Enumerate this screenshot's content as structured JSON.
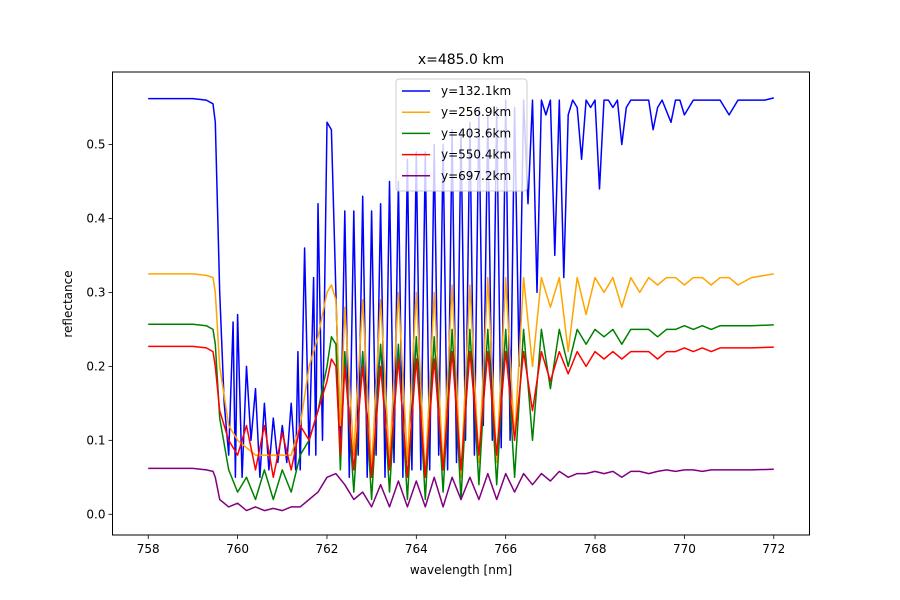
{
  "chart_data": {
    "type": "line",
    "title": "x=485.0 km",
    "xlabel": "wavelength [nm]",
    "ylabel": "reflectance",
    "xlim": [
      757.2,
      772.8
    ],
    "ylim": [
      -0.028,
      0.598
    ],
    "xticks": [
      758,
      760,
      762,
      764,
      766,
      768,
      770,
      772
    ],
    "yticks": [
      0.0,
      0.1,
      0.2,
      0.3,
      0.4,
      0.5
    ],
    "ytick_labels": [
      "0.0",
      "0.1",
      "0.2",
      "0.3",
      "0.4",
      "0.5"
    ],
    "grid": false,
    "legend_position": "top-center",
    "series": [
      {
        "name": "y=132.1km",
        "color": "#0000ff",
        "x": [
          758.0,
          759.0,
          759.3,
          759.45,
          759.5,
          759.6,
          759.7,
          759.8,
          759.9,
          759.95,
          760.0,
          760.1,
          760.2,
          760.3,
          760.4,
          760.5,
          760.6,
          760.7,
          760.8,
          760.9,
          761.0,
          761.1,
          761.2,
          761.3,
          761.35,
          761.4,
          761.5,
          761.6,
          761.7,
          761.75,
          761.8,
          761.9,
          762.0,
          762.1,
          762.2,
          762.3,
          762.4,
          762.5,
          762.6,
          762.7,
          762.8,
          762.9,
          763.0,
          763.1,
          763.2,
          763.3,
          763.4,
          763.5,
          763.6,
          763.7,
          763.8,
          763.9,
          764.0,
          764.1,
          764.2,
          764.3,
          764.4,
          764.5,
          764.6,
          764.7,
          764.8,
          764.9,
          765.0,
          765.1,
          765.2,
          765.3,
          765.4,
          765.5,
          765.6,
          765.7,
          765.8,
          765.9,
          766.0,
          766.1,
          766.2,
          766.3,
          766.4,
          766.5,
          766.6,
          766.7,
          766.8,
          766.9,
          767.0,
          767.1,
          767.2,
          767.3,
          767.4,
          767.5,
          767.6,
          767.7,
          767.8,
          767.9,
          768.0,
          768.1,
          768.2,
          768.3,
          768.4,
          768.5,
          768.6,
          768.7,
          768.8,
          769.0,
          769.2,
          769.3,
          769.4,
          769.5,
          769.7,
          769.8,
          769.9,
          770.0,
          770.2,
          770.5,
          770.7,
          770.8,
          771.0,
          771.2,
          771.5,
          771.8,
          772.0
        ],
        "y": [
          0.562,
          0.562,
          0.56,
          0.555,
          0.53,
          0.3,
          0.15,
          0.08,
          0.26,
          0.05,
          0.27,
          0.05,
          0.2,
          0.1,
          0.17,
          0.05,
          0.15,
          0.06,
          0.13,
          0.07,
          0.12,
          0.07,
          0.15,
          0.06,
          0.22,
          0.06,
          0.36,
          0.08,
          0.32,
          0.08,
          0.42,
          0.1,
          0.53,
          0.52,
          0.3,
          0.08,
          0.41,
          0.05,
          0.41,
          0.08,
          0.43,
          0.05,
          0.41,
          0.08,
          0.42,
          0.05,
          0.45,
          0.07,
          0.45,
          0.05,
          0.48,
          0.06,
          0.49,
          0.06,
          0.49,
          0.06,
          0.5,
          0.08,
          0.5,
          0.06,
          0.52,
          0.07,
          0.52,
          0.1,
          0.53,
          0.08,
          0.55,
          0.12,
          0.54,
          0.1,
          0.55,
          0.09,
          0.56,
          0.1,
          0.55,
          0.2,
          0.56,
          0.42,
          0.56,
          0.3,
          0.56,
          0.54,
          0.56,
          0.35,
          0.56,
          0.32,
          0.54,
          0.56,
          0.55,
          0.48,
          0.56,
          0.55,
          0.56,
          0.44,
          0.56,
          0.56,
          0.55,
          0.56,
          0.5,
          0.55,
          0.56,
          0.56,
          0.56,
          0.52,
          0.55,
          0.56,
          0.53,
          0.56,
          0.56,
          0.54,
          0.56,
          0.56,
          0.56,
          0.56,
          0.54,
          0.56,
          0.56,
          0.56,
          0.563
        ]
      },
      {
        "name": "y=256.9km",
        "color": "#ffa500",
        "x": [
          758.0,
          759.0,
          759.3,
          759.45,
          759.5,
          759.6,
          759.8,
          760.0,
          760.2,
          760.4,
          760.6,
          760.8,
          761.0,
          761.2,
          761.4,
          761.6,
          761.8,
          762.0,
          762.1,
          762.2,
          762.3,
          762.4,
          762.6,
          762.8,
          763.0,
          763.2,
          763.4,
          763.6,
          763.8,
          764.0,
          764.2,
          764.4,
          764.6,
          764.8,
          765.0,
          765.2,
          765.4,
          765.6,
          765.8,
          766.0,
          766.2,
          766.4,
          766.6,
          766.8,
          767.0,
          767.2,
          767.4,
          767.6,
          767.8,
          768.0,
          768.2,
          768.4,
          768.6,
          768.8,
          769.0,
          769.2,
          769.4,
          769.6,
          769.8,
          770.0,
          770.2,
          770.4,
          770.6,
          770.8,
          771.0,
          771.2,
          771.5,
          772.0
        ],
        "y": [
          0.325,
          0.325,
          0.323,
          0.32,
          0.3,
          0.2,
          0.12,
          0.1,
          0.09,
          0.08,
          0.08,
          0.08,
          0.08,
          0.08,
          0.12,
          0.2,
          0.24,
          0.3,
          0.31,
          0.29,
          0.12,
          0.28,
          0.08,
          0.29,
          0.06,
          0.29,
          0.07,
          0.3,
          0.07,
          0.3,
          0.05,
          0.3,
          0.06,
          0.31,
          0.05,
          0.31,
          0.07,
          0.32,
          0.07,
          0.32,
          0.1,
          0.32,
          0.2,
          0.32,
          0.28,
          0.32,
          0.22,
          0.32,
          0.27,
          0.32,
          0.3,
          0.32,
          0.28,
          0.32,
          0.3,
          0.32,
          0.31,
          0.32,
          0.32,
          0.31,
          0.32,
          0.32,
          0.31,
          0.32,
          0.32,
          0.31,
          0.32,
          0.325
        ]
      },
      {
        "name": "y=403.6km",
        "color": "#008000",
        "x": [
          758.0,
          759.0,
          759.3,
          759.45,
          759.5,
          759.6,
          759.8,
          760.0,
          760.2,
          760.4,
          760.6,
          760.8,
          761.0,
          761.2,
          761.4,
          761.6,
          761.8,
          762.0,
          762.1,
          762.2,
          762.3,
          762.4,
          762.6,
          762.8,
          763.0,
          763.2,
          763.4,
          763.6,
          763.8,
          764.0,
          764.2,
          764.4,
          764.6,
          764.8,
          765.0,
          765.2,
          765.4,
          765.6,
          765.8,
          766.0,
          766.2,
          766.4,
          766.6,
          766.8,
          767.0,
          767.2,
          767.4,
          767.6,
          767.8,
          768.0,
          768.2,
          768.4,
          768.6,
          768.8,
          769.0,
          769.2,
          769.4,
          769.6,
          769.8,
          770.0,
          770.2,
          770.4,
          770.6,
          770.8,
          771.0,
          771.5,
          772.0
        ],
        "y": [
          0.257,
          0.257,
          0.255,
          0.25,
          0.23,
          0.13,
          0.06,
          0.03,
          0.05,
          0.02,
          0.06,
          0.02,
          0.06,
          0.03,
          0.08,
          0.1,
          0.14,
          0.2,
          0.24,
          0.23,
          0.06,
          0.22,
          0.03,
          0.22,
          0.02,
          0.23,
          0.03,
          0.23,
          0.02,
          0.24,
          0.02,
          0.24,
          0.03,
          0.25,
          0.02,
          0.25,
          0.04,
          0.25,
          0.04,
          0.25,
          0.05,
          0.25,
          0.1,
          0.25,
          0.17,
          0.25,
          0.2,
          0.25,
          0.23,
          0.25,
          0.24,
          0.25,
          0.23,
          0.25,
          0.25,
          0.25,
          0.24,
          0.25,
          0.25,
          0.255,
          0.25,
          0.255,
          0.25,
          0.255,
          0.255,
          0.255,
          0.256
        ]
      },
      {
        "name": "y=550.4km",
        "color": "#ff0000",
        "x": [
          758.0,
          759.0,
          759.3,
          759.45,
          759.5,
          759.6,
          759.8,
          760.0,
          760.2,
          760.4,
          760.6,
          760.8,
          761.0,
          761.2,
          761.4,
          761.6,
          761.8,
          762.0,
          762.1,
          762.2,
          762.3,
          762.4,
          762.6,
          762.8,
          763.0,
          763.2,
          763.4,
          763.6,
          763.8,
          764.0,
          764.2,
          764.4,
          764.6,
          764.8,
          765.0,
          765.2,
          765.4,
          765.6,
          765.8,
          766.0,
          766.2,
          766.4,
          766.6,
          766.8,
          767.0,
          767.2,
          767.4,
          767.6,
          767.8,
          768.0,
          768.2,
          768.4,
          768.6,
          768.8,
          769.0,
          769.2,
          769.4,
          769.6,
          769.8,
          770.0,
          770.2,
          770.4,
          770.6,
          770.8,
          771.0,
          771.5,
          772.0
        ],
        "y": [
          0.227,
          0.227,
          0.225,
          0.22,
          0.2,
          0.14,
          0.1,
          0.08,
          0.12,
          0.06,
          0.12,
          0.05,
          0.11,
          0.06,
          0.12,
          0.1,
          0.14,
          0.18,
          0.21,
          0.2,
          0.08,
          0.2,
          0.06,
          0.2,
          0.05,
          0.2,
          0.06,
          0.21,
          0.05,
          0.21,
          0.05,
          0.21,
          0.06,
          0.22,
          0.06,
          0.22,
          0.08,
          0.22,
          0.08,
          0.22,
          0.1,
          0.22,
          0.14,
          0.22,
          0.18,
          0.22,
          0.19,
          0.22,
          0.2,
          0.22,
          0.21,
          0.22,
          0.21,
          0.22,
          0.22,
          0.22,
          0.21,
          0.22,
          0.22,
          0.225,
          0.22,
          0.225,
          0.22,
          0.225,
          0.225,
          0.225,
          0.226
        ]
      },
      {
        "name": "y=697.2km",
        "color": "#800080",
        "x": [
          758.0,
          759.0,
          759.3,
          759.45,
          759.5,
          759.6,
          759.8,
          760.0,
          760.2,
          760.4,
          760.6,
          760.8,
          761.0,
          761.2,
          761.4,
          761.6,
          761.8,
          762.0,
          762.2,
          762.4,
          762.6,
          762.8,
          763.0,
          763.2,
          763.4,
          763.6,
          763.8,
          764.0,
          764.2,
          764.4,
          764.6,
          764.8,
          765.0,
          765.2,
          765.4,
          765.6,
          765.8,
          766.0,
          766.2,
          766.4,
          766.6,
          766.8,
          767.0,
          767.2,
          767.4,
          767.6,
          767.8,
          768.0,
          768.2,
          768.4,
          768.6,
          768.8,
          769.0,
          769.2,
          769.4,
          769.6,
          769.8,
          770.0,
          770.2,
          770.4,
          770.6,
          770.8,
          771.0,
          771.5,
          772.0
        ],
        "y": [
          0.062,
          0.062,
          0.06,
          0.058,
          0.05,
          0.02,
          0.01,
          0.015,
          0.005,
          0.01,
          0.005,
          0.008,
          0.005,
          0.01,
          0.01,
          0.02,
          0.03,
          0.05,
          0.055,
          0.04,
          0.02,
          0.03,
          0.01,
          0.04,
          0.01,
          0.045,
          0.01,
          0.045,
          0.01,
          0.05,
          0.01,
          0.05,
          0.02,
          0.05,
          0.02,
          0.055,
          0.02,
          0.055,
          0.03,
          0.055,
          0.04,
          0.055,
          0.045,
          0.058,
          0.05,
          0.055,
          0.055,
          0.058,
          0.055,
          0.058,
          0.05,
          0.058,
          0.058,
          0.055,
          0.058,
          0.06,
          0.058,
          0.06,
          0.06,
          0.058,
          0.06,
          0.06,
          0.06,
          0.06,
          0.061
        ]
      }
    ]
  }
}
